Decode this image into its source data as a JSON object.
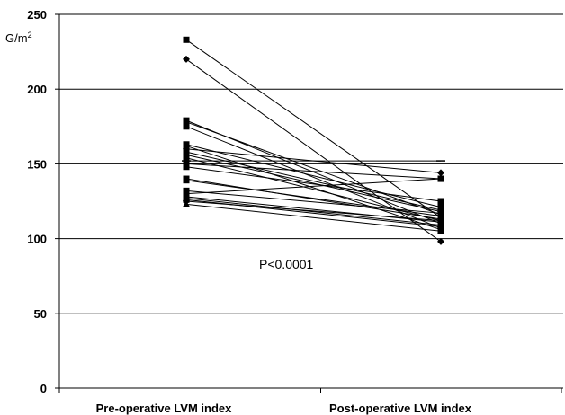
{
  "chart_data": {
    "type": "line",
    "categories": [
      "Pre-operative LVM index",
      "Post-operative LVM index"
    ],
    "ylabel": "G/m²",
    "yunit_base": "G/m",
    "yunit_sup": "2",
    "ylim": [
      0,
      250
    ],
    "yticks": [
      "0",
      "50",
      "100",
      "150",
      "200",
      "250"
    ],
    "grid": true,
    "annotation": "P<0.0001",
    "colors": {
      "lines": "#000000",
      "grid": "#000000"
    },
    "series": [
      {
        "values": [
          233,
          114
        ],
        "marker": "square"
      },
      {
        "values": [
          220,
          98
        ],
        "marker": "diamond"
      },
      {
        "values": [
          179,
          110
        ],
        "marker": "square"
      },
      {
        "values": [
          178,
          116
        ],
        "marker": "square"
      },
      {
        "values": [
          175,
          107
        ],
        "marker": "square"
      },
      {
        "values": [
          163,
          121
        ],
        "marker": "square"
      },
      {
        "values": [
          162,
          106
        ],
        "marker": "square"
      },
      {
        "values": [
          160,
          144
        ],
        "marker": "diamond"
      },
      {
        "values": [
          158,
          119
        ],
        "marker": "square"
      },
      {
        "values": [
          156,
          118
        ],
        "marker": "diamond"
      },
      {
        "values": [
          154,
          112
        ],
        "marker": "square"
      },
      {
        "values": [
          152,
          152
        ],
        "marker": "dash"
      },
      {
        "values": [
          150,
          140
        ],
        "marker": "square"
      },
      {
        "values": [
          148,
          125
        ],
        "marker": "square"
      },
      {
        "values": [
          140,
          113
        ],
        "marker": "square"
      },
      {
        "values": [
          139,
          115
        ],
        "marker": "square"
      },
      {
        "values": [
          132,
          117
        ],
        "marker": "square"
      },
      {
        "values": [
          130,
          140
        ],
        "marker": "square"
      },
      {
        "values": [
          128,
          111
        ],
        "marker": "square"
      },
      {
        "values": [
          127,
          109
        ],
        "marker": "triangle"
      },
      {
        "values": [
          126,
          108
        ],
        "marker": "square"
      },
      {
        "values": [
          125,
          112
        ],
        "marker": "diamond"
      },
      {
        "values": [
          123,
          105
        ],
        "marker": "triangle"
      }
    ]
  }
}
